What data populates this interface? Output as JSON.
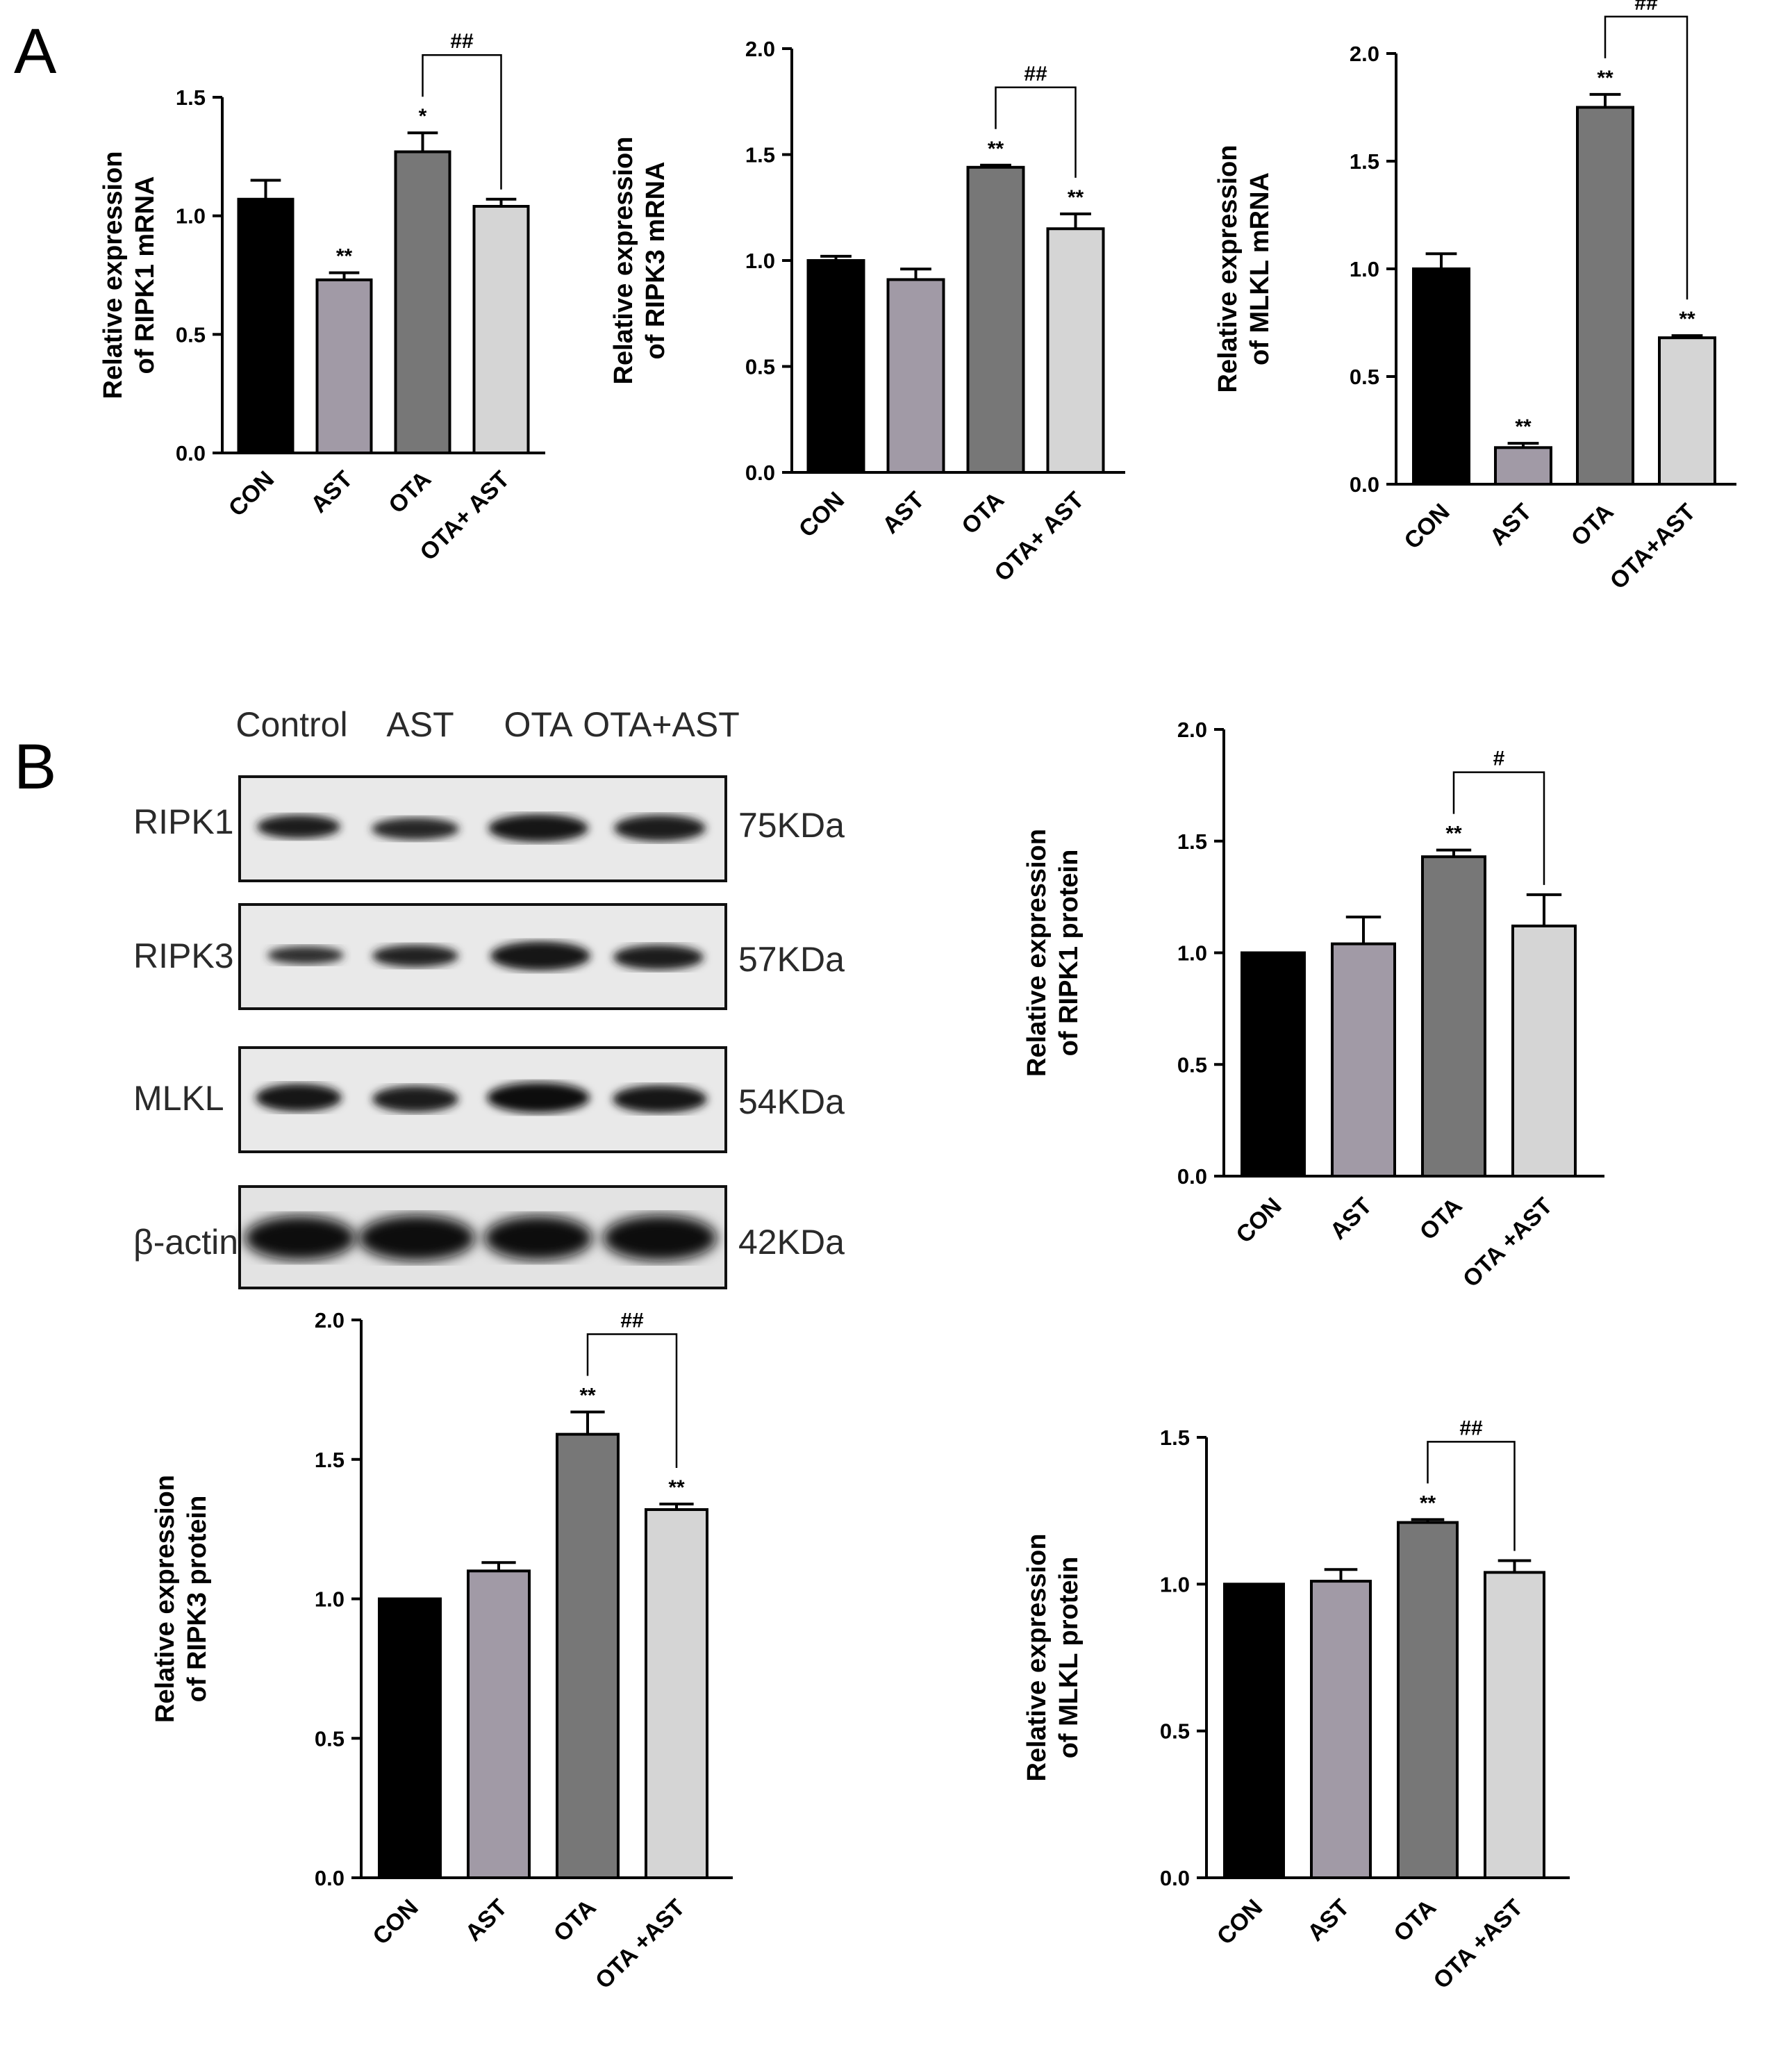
{
  "panels": {
    "a": "A",
    "b": "B"
  },
  "chart_data": [
    {
      "type": "bar",
      "categories": [
        "CON",
        "AST",
        "OTA",
        "OTA+ AST"
      ],
      "values": [
        1.07,
        0.73,
        1.27,
        1.04
      ],
      "errors": [
        0.08,
        0.03,
        0.08,
        0.03
      ],
      "stars": [
        "",
        "**",
        "*",
        ""
      ],
      "bracket": {
        "from": 2,
        "to": 3,
        "label": "##"
      },
      "ylabel": [
        "Relative expression",
        "of RIPK1 mRNA"
      ],
      "ylim": [
        0,
        1.5
      ],
      "yticks": [
        "0.0",
        "0.5",
        "1.0",
        "1.5"
      ],
      "colors": [
        "#000000",
        "#a19aa6",
        "#777777",
        "#d5d5d5"
      ]
    },
    {
      "type": "bar",
      "categories": [
        "CON",
        "AST",
        "OTA",
        "OTA+ AST"
      ],
      "values": [
        1.0,
        0.91,
        1.44,
        1.15
      ],
      "errors": [
        0.02,
        0.05,
        0.01,
        0.07
      ],
      "stars": [
        "",
        "",
        "**",
        "**"
      ],
      "bracket": {
        "from": 2,
        "to": 3,
        "label": "##"
      },
      "ylabel": [
        "Relative expression",
        "of RIPK3 mRNA"
      ],
      "ylim": [
        0,
        2.0
      ],
      "yticks": [
        "0.0",
        "0.5",
        "1.0",
        "1.5",
        "2.0"
      ],
      "colors": [
        "#000000",
        "#a19aa6",
        "#777777",
        "#d5d5d5"
      ]
    },
    {
      "type": "bar",
      "categories": [
        "CON",
        "AST",
        "OTA",
        "OTA+AST"
      ],
      "values": [
        1.0,
        0.17,
        1.75,
        0.68
      ],
      "errors": [
        0.07,
        0.02,
        0.06,
        0.01
      ],
      "stars": [
        "",
        "**",
        "**",
        "**"
      ],
      "bracket": {
        "from": 2,
        "to": 3,
        "label": "##"
      },
      "ylabel": [
        "Relative expression",
        "of MLKL mRNA"
      ],
      "ylim": [
        0,
        2.0
      ],
      "yticks": [
        "0.0",
        "0.5",
        "1.0",
        "1.5",
        "2.0"
      ],
      "colors": [
        "#000000",
        "#a19aa6",
        "#777777",
        "#d5d5d5"
      ]
    },
    {
      "type": "bar",
      "categories": [
        "CON",
        "AST",
        "OTA",
        "OTA +AST"
      ],
      "values": [
        1.0,
        1.04,
        1.43,
        1.12
      ],
      "errors": [
        0.0,
        0.12,
        0.03,
        0.14
      ],
      "stars": [
        "",
        "",
        "**",
        ""
      ],
      "bracket": {
        "from": 2,
        "to": 3,
        "label": "#"
      },
      "ylabel": [
        "Relative expression",
        "of RIPK1 protein"
      ],
      "ylim": [
        0,
        2.0
      ],
      "yticks": [
        "0.0",
        "0.5",
        "1.0",
        "1.5",
        "2.0"
      ],
      "colors": [
        "#000000",
        "#a19aa6",
        "#777777",
        "#d5d5d5"
      ]
    },
    {
      "type": "bar",
      "categories": [
        "CON",
        "AST",
        "OTA",
        "OTA +AST"
      ],
      "values": [
        1.0,
        1.1,
        1.59,
        1.32
      ],
      "errors": [
        0.0,
        0.03,
        0.08,
        0.02
      ],
      "stars": [
        "",
        "",
        "**",
        "**"
      ],
      "bracket": {
        "from": 2,
        "to": 3,
        "label": "##"
      },
      "ylabel": [
        "Relative expression",
        "of RIPK3 protein"
      ],
      "ylim": [
        0,
        2.0
      ],
      "yticks": [
        "0.0",
        "0.5",
        "1.0",
        "1.5",
        "2.0"
      ],
      "colors": [
        "#000000",
        "#a19aa6",
        "#777777",
        "#d5d5d5"
      ]
    },
    {
      "type": "bar",
      "categories": [
        "CON",
        "AST",
        "OTA",
        "OTA +AST"
      ],
      "values": [
        1.0,
        1.01,
        1.21,
        1.04
      ],
      "errors": [
        0.0,
        0.04,
        0.01,
        0.04
      ],
      "stars": [
        "",
        "",
        "**",
        ""
      ],
      "bracket": {
        "from": 2,
        "to": 3,
        "label": "##"
      },
      "ylabel": [
        "Relative expression",
        "of MLKL protein"
      ],
      "ylim": [
        0,
        1.5
      ],
      "yticks": [
        "0.0",
        "0.5",
        "1.0",
        "1.5"
      ],
      "colors": [
        "#000000",
        "#a19aa6",
        "#777777",
        "#d5d5d5"
      ]
    }
  ],
  "western_blot": {
    "lanes": [
      "Control",
      "AST",
      "OTA",
      "OTA+AST"
    ],
    "rows": [
      {
        "protein": "RIPK1",
        "size": "75KDa"
      },
      {
        "protein": "RIPK3",
        "size": "57KDa"
      },
      {
        "protein": "MLKL",
        "size": "54KDa"
      },
      {
        "protein": "β-actin",
        "size": "42KDa"
      }
    ]
  }
}
